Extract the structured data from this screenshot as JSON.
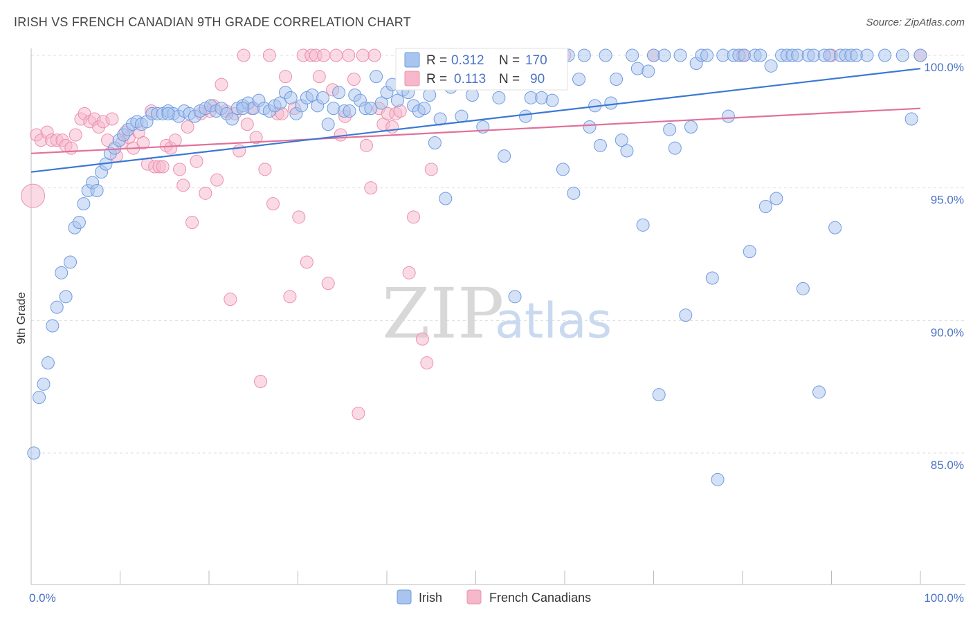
{
  "title": "IRISH VS FRENCH CANADIAN 9TH GRADE CORRELATION CHART",
  "source": "Source: ZipAtlas.com",
  "watermark": {
    "zip": "ZIP",
    "atlas": "atlas"
  },
  "stats": {
    "r_label": "R =",
    "n_label": "N =",
    "irish": {
      "r": "0.312",
      "n": "170"
    },
    "french": {
      "r": "0.113",
      "n": "90"
    }
  },
  "colors": {
    "irish_fill": "#a9c4ee",
    "irish_stroke": "#6e9be0",
    "irish_line": "#3a78d4",
    "french_fill": "#f5b8cb",
    "french_stroke": "#ec8fac",
    "french_line": "#e2709a",
    "tick_text": "#4a72c4",
    "grid": "#dddddd"
  },
  "chart_data": {
    "type": "scatter",
    "title": "IRISH VS FRENCH CANADIAN 9TH GRADE CORRELATION CHART",
    "ylabel": "9th Grade",
    "xlabel": "",
    "xlim": [
      0,
      100
    ],
    "ylim": [
      80.5,
      100.7
    ],
    "x_tick_labels": [
      "0.0%",
      "100.0%"
    ],
    "y_ticks": [
      {
        "value": 85,
        "label": "85.0%"
      },
      {
        "value": 90,
        "label": "90.0%"
      },
      {
        "value": 95,
        "label": "95.0%"
      },
      {
        "value": 100,
        "label": "100.0%"
      }
    ],
    "grid": true,
    "legend_position": "bottom-center",
    "series": [
      {
        "name": "Irish",
        "trend": [
          [
            0,
            95.6
          ],
          [
            100,
            99.5
          ]
        ],
        "points": [
          [
            0.3,
            85.0
          ],
          [
            0.9,
            87.1
          ],
          [
            1.4,
            87.6
          ],
          [
            1.9,
            88.4
          ],
          [
            2.4,
            89.8
          ],
          [
            2.9,
            90.5
          ],
          [
            3.4,
            91.8
          ],
          [
            3.9,
            90.9
          ],
          [
            4.4,
            92.2
          ],
          [
            4.9,
            93.5
          ],
          [
            5.4,
            93.7
          ],
          [
            5.9,
            94.4
          ],
          [
            6.4,
            94.9
          ],
          [
            6.9,
            95.2
          ],
          [
            7.4,
            94.9
          ],
          [
            7.9,
            95.6
          ],
          [
            8.4,
            95.9
          ],
          [
            8.9,
            96.3
          ],
          [
            9.4,
            96.5
          ],
          [
            9.9,
            96.8
          ],
          [
            10.4,
            97.0
          ],
          [
            10.9,
            97.2
          ],
          [
            11.4,
            97.4
          ],
          [
            11.9,
            97.5
          ],
          [
            12.4,
            97.4
          ],
          [
            13.0,
            97.5
          ],
          [
            13.6,
            97.8
          ],
          [
            14.2,
            97.8
          ],
          [
            14.8,
            97.8
          ],
          [
            15.4,
            97.9
          ],
          [
            16.0,
            97.8
          ],
          [
            16.6,
            97.7
          ],
          [
            17.2,
            97.9
          ],
          [
            17.8,
            97.8
          ],
          [
            18.4,
            97.7
          ],
          [
            19.0,
            97.9
          ],
          [
            19.6,
            98.0
          ],
          [
            20.2,
            98.1
          ],
          [
            20.8,
            97.9
          ],
          [
            21.4,
            98.0
          ],
          [
            22.0,
            97.8
          ],
          [
            22.6,
            97.6
          ],
          [
            23.2,
            98.0
          ],
          [
            23.8,
            98.1
          ],
          [
            24.4,
            98.2
          ],
          [
            25.0,
            98.0
          ],
          [
            25.6,
            98.3
          ],
          [
            26.2,
            98.0
          ],
          [
            26.8,
            97.9
          ],
          [
            27.4,
            98.1
          ],
          [
            28.0,
            98.2
          ],
          [
            28.6,
            98.6
          ],
          [
            29.2,
            98.4
          ],
          [
            29.8,
            97.8
          ],
          [
            30.4,
            98.1
          ],
          [
            31.0,
            98.4
          ],
          [
            31.6,
            98.5
          ],
          [
            32.2,
            98.1
          ],
          [
            32.8,
            98.4
          ],
          [
            33.4,
            97.4
          ],
          [
            34.0,
            98.0
          ],
          [
            34.6,
            98.6
          ],
          [
            35.2,
            97.9
          ],
          [
            35.8,
            97.9
          ],
          [
            36.4,
            98.5
          ],
          [
            37.0,
            98.3
          ],
          [
            37.6,
            98.0
          ],
          [
            38.2,
            98.0
          ],
          [
            38.8,
            99.2
          ],
          [
            39.4,
            98.2
          ],
          [
            40.0,
            98.6
          ],
          [
            40.6,
            98.9
          ],
          [
            41.2,
            98.3
          ],
          [
            41.8,
            98.7
          ],
          [
            42.4,
            98.6
          ],
          [
            43.0,
            98.1
          ],
          [
            43.6,
            97.9
          ],
          [
            44.2,
            98.0
          ],
          [
            44.8,
            98.5
          ],
          [
            45.4,
            96.7
          ],
          [
            46.0,
            97.6
          ],
          [
            46.6,
            94.6
          ],
          [
            47.2,
            98.8
          ],
          [
            47.8,
            99.2
          ],
          [
            48.4,
            97.7
          ],
          [
            49.0,
            100.0
          ],
          [
            49.6,
            98.5
          ],
          [
            50.2,
            100.0
          ],
          [
            50.8,
            97.3
          ],
          [
            51.4,
            99.4
          ],
          [
            52.0,
            100.0
          ],
          [
            52.6,
            98.4
          ],
          [
            53.2,
            96.2
          ],
          [
            53.8,
            100.0
          ],
          [
            54.4,
            90.9
          ],
          [
            55.0,
            100.0
          ],
          [
            55.6,
            97.7
          ],
          [
            56.2,
            98.4
          ],
          [
            56.8,
            100.0
          ],
          [
            57.4,
            98.4
          ],
          [
            58.0,
            99.0
          ],
          [
            58.6,
            98.3
          ],
          [
            59.2,
            100.0
          ],
          [
            59.8,
            95.7
          ],
          [
            60.4,
            100.0
          ],
          [
            61.0,
            94.8
          ],
          [
            61.6,
            99.1
          ],
          [
            62.2,
            100.0
          ],
          [
            62.8,
            97.3
          ],
          [
            63.4,
            98.1
          ],
          [
            64.0,
            96.6
          ],
          [
            64.6,
            100.0
          ],
          [
            65.2,
            98.2
          ],
          [
            65.8,
            99.1
          ],
          [
            66.4,
            96.8
          ],
          [
            67.0,
            96.4
          ],
          [
            67.6,
            100.0
          ],
          [
            68.2,
            99.5
          ],
          [
            68.8,
            93.6
          ],
          [
            69.4,
            99.4
          ],
          [
            70.0,
            100.0
          ],
          [
            70.6,
            87.2
          ],
          [
            71.2,
            100.0
          ],
          [
            71.8,
            97.2
          ],
          [
            72.4,
            96.5
          ],
          [
            73.0,
            100.0
          ],
          [
            73.6,
            90.2
          ],
          [
            74.2,
            97.3
          ],
          [
            74.8,
            99.7
          ],
          [
            75.4,
            100.0
          ],
          [
            76.0,
            100.0
          ],
          [
            76.6,
            91.6
          ],
          [
            77.2,
            84.0
          ],
          [
            77.8,
            100.0
          ],
          [
            78.4,
            97.7
          ],
          [
            79.0,
            100.0
          ],
          [
            79.6,
            100.0
          ],
          [
            80.2,
            100.0
          ],
          [
            80.8,
            92.6
          ],
          [
            81.4,
            100.0
          ],
          [
            82.0,
            100.0
          ],
          [
            82.6,
            94.3
          ],
          [
            83.2,
            99.6
          ],
          [
            83.8,
            94.6
          ],
          [
            84.4,
            100.0
          ],
          [
            85.0,
            100.0
          ],
          [
            85.6,
            100.0
          ],
          [
            86.2,
            100.0
          ],
          [
            86.8,
            91.2
          ],
          [
            87.4,
            100.0
          ],
          [
            88.0,
            100.0
          ],
          [
            88.6,
            87.3
          ],
          [
            89.2,
            100.0
          ],
          [
            89.8,
            100.0
          ],
          [
            90.4,
            93.5
          ],
          [
            91.0,
            100.0
          ],
          [
            91.6,
            100.0
          ],
          [
            92.2,
            100.0
          ],
          [
            92.8,
            100.0
          ],
          [
            94.0,
            100.0
          ],
          [
            96.0,
            100.0
          ],
          [
            98.0,
            100.0
          ],
          [
            99.0,
            97.6
          ],
          [
            100.0,
            100.0
          ],
          [
            15.4,
            97.8
          ],
          [
            23.8,
            98.0
          ]
        ]
      },
      {
        "name": "French Canadians",
        "trend": [
          [
            0,
            96.3
          ],
          [
            100,
            98.0
          ]
        ],
        "points": [
          [
            0.2,
            94.7
          ],
          [
            0.6,
            97.0
          ],
          [
            1.1,
            96.8
          ],
          [
            1.8,
            97.1
          ],
          [
            2.3,
            96.8
          ],
          [
            2.9,
            96.8
          ],
          [
            3.5,
            96.8
          ],
          [
            3.9,
            96.6
          ],
          [
            4.5,
            96.5
          ],
          [
            5.0,
            97.0
          ],
          [
            5.6,
            97.6
          ],
          [
            6.0,
            97.8
          ],
          [
            6.6,
            97.5
          ],
          [
            7.1,
            97.6
          ],
          [
            7.6,
            97.3
          ],
          [
            8.1,
            97.5
          ],
          [
            8.6,
            96.8
          ],
          [
            9.1,
            97.6
          ],
          [
            9.6,
            96.2
          ],
          [
            10.2,
            96.7
          ],
          [
            10.6,
            97.1
          ],
          [
            11.0,
            96.9
          ],
          [
            11.5,
            96.5
          ],
          [
            12.1,
            97.1
          ],
          [
            12.6,
            96.7
          ],
          [
            13.1,
            95.9
          ],
          [
            13.5,
            97.9
          ],
          [
            13.9,
            95.8
          ],
          [
            14.4,
            95.8
          ],
          [
            14.8,
            95.8
          ],
          [
            15.2,
            96.6
          ],
          [
            15.7,
            96.5
          ],
          [
            16.2,
            96.8
          ],
          [
            16.7,
            95.7
          ],
          [
            17.1,
            95.1
          ],
          [
            17.6,
            97.3
          ],
          [
            18.1,
            93.7
          ],
          [
            18.6,
            96.0
          ],
          [
            19.1,
            97.8
          ],
          [
            19.6,
            94.8
          ],
          [
            20.1,
            97.9
          ],
          [
            20.5,
            98.1
          ],
          [
            20.9,
            95.3
          ],
          [
            21.4,
            98.9
          ],
          [
            21.9,
            97.9
          ],
          [
            22.4,
            90.8
          ],
          [
            22.9,
            97.8
          ],
          [
            23.4,
            96.4
          ],
          [
            23.9,
            100.0
          ],
          [
            24.3,
            97.4
          ],
          [
            24.8,
            98.0
          ],
          [
            25.3,
            96.9
          ],
          [
            25.8,
            87.7
          ],
          [
            26.3,
            95.7
          ],
          [
            26.8,
            100.0
          ],
          [
            27.2,
            94.4
          ],
          [
            27.7,
            97.8
          ],
          [
            28.2,
            97.8
          ],
          [
            28.6,
            99.2
          ],
          [
            29.1,
            90.9
          ],
          [
            29.6,
            98.0
          ],
          [
            30.1,
            93.9
          ],
          [
            30.6,
            100.0
          ],
          [
            31.0,
            92.2
          ],
          [
            31.5,
            100.0
          ],
          [
            32.0,
            100.0
          ],
          [
            32.4,
            99.2
          ],
          [
            32.9,
            100.0
          ],
          [
            33.4,
            91.4
          ],
          [
            33.9,
            98.7
          ],
          [
            34.3,
            100.0
          ],
          [
            34.8,
            97.0
          ],
          [
            35.3,
            97.7
          ],
          [
            35.7,
            100.0
          ],
          [
            36.3,
            99.1
          ],
          [
            36.8,
            86.5
          ],
          [
            37.3,
            100.0
          ],
          [
            37.7,
            96.6
          ],
          [
            38.2,
            95.0
          ],
          [
            38.6,
            100.0
          ],
          [
            39.1,
            98.0
          ],
          [
            39.6,
            97.4
          ],
          [
            40.1,
            97.8
          ],
          [
            40.6,
            97.3
          ],
          [
            41.0,
            97.8
          ],
          [
            41.5,
            97.9
          ],
          [
            42.0,
            100.0
          ],
          [
            42.5,
            91.8
          ],
          [
            43.0,
            93.9
          ],
          [
            44.0,
            89.3
          ],
          [
            44.5,
            88.4
          ],
          [
            45.0,
            95.7
          ],
          [
            46.0,
            100.0
          ],
          [
            48.0,
            100.0
          ],
          [
            50.0,
            100.0
          ],
          [
            60.0,
            100.0
          ],
          [
            70.0,
            100.0
          ],
          [
            80.0,
            100.0
          ],
          [
            90.0,
            100.0
          ],
          [
            100.0,
            100.0
          ]
        ]
      }
    ]
  },
  "legend": {
    "irish": "Irish",
    "french": "French Canadians"
  }
}
